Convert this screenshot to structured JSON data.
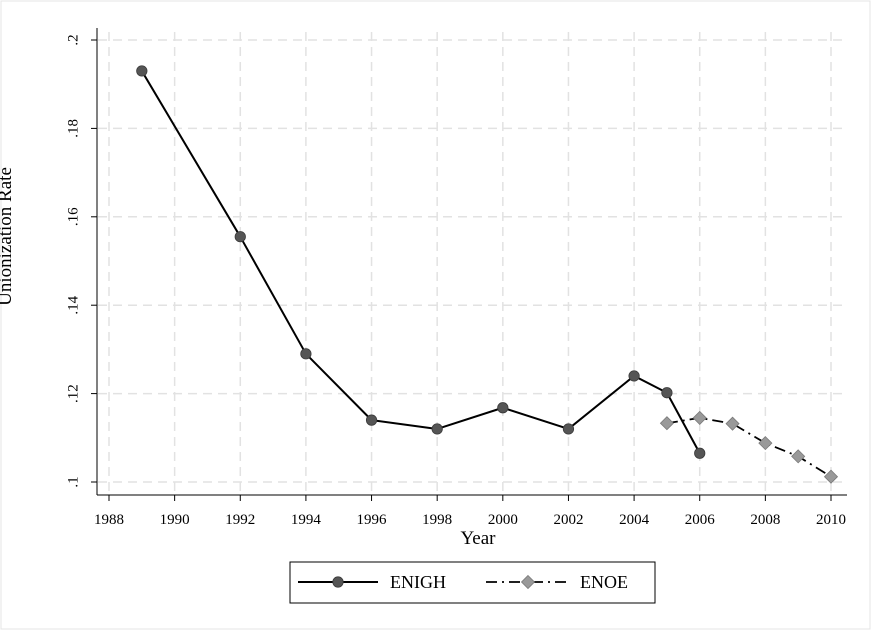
{
  "chart_data": {
    "type": "line",
    "title": "",
    "xlabel": "Year",
    "ylabel": "Unionization Rate",
    "xlim": [
      1988,
      2010
    ],
    "ylim": [
      0.1,
      0.2
    ],
    "x_ticks": [
      1988,
      1990,
      1992,
      1994,
      1996,
      1998,
      2000,
      2002,
      2004,
      2006,
      2008,
      2010
    ],
    "x_tick_labels": [
      "1988",
      "1990",
      "1992",
      "1994",
      "1996",
      "1998",
      "2000",
      "2002",
      "2004",
      "2006",
      "2008",
      "2010"
    ],
    "y_ticks": [
      0.1,
      0.12,
      0.14,
      0.16,
      0.18,
      0.2
    ],
    "y_tick_labels": [
      ".1",
      ".12",
      ".14",
      ".16",
      ".18",
      ".2"
    ],
    "grid": true,
    "legend_position": "bottom",
    "series": [
      {
        "name": "ENIGH",
        "color": "#555555",
        "line_color": "#000000",
        "marker": "circle",
        "line_style": "solid",
        "x": [
          1989,
          1992,
          1994,
          1996,
          1998,
          2000,
          2002,
          2004,
          2005,
          2006
        ],
        "y": [
          0.193,
          0.1555,
          0.129,
          0.114,
          0.112,
          0.1168,
          0.112,
          0.124,
          0.1202,
          0.1065
        ]
      },
      {
        "name": "ENOE",
        "color": "#999999",
        "line_color": "#000000",
        "marker": "diamond",
        "line_style": "dashdot",
        "x": [
          2005,
          2006,
          2007,
          2008,
          2009,
          2010
        ],
        "y": [
          0.1133,
          0.1145,
          0.1132,
          0.1088,
          0.1058,
          0.1012
        ]
      }
    ]
  }
}
